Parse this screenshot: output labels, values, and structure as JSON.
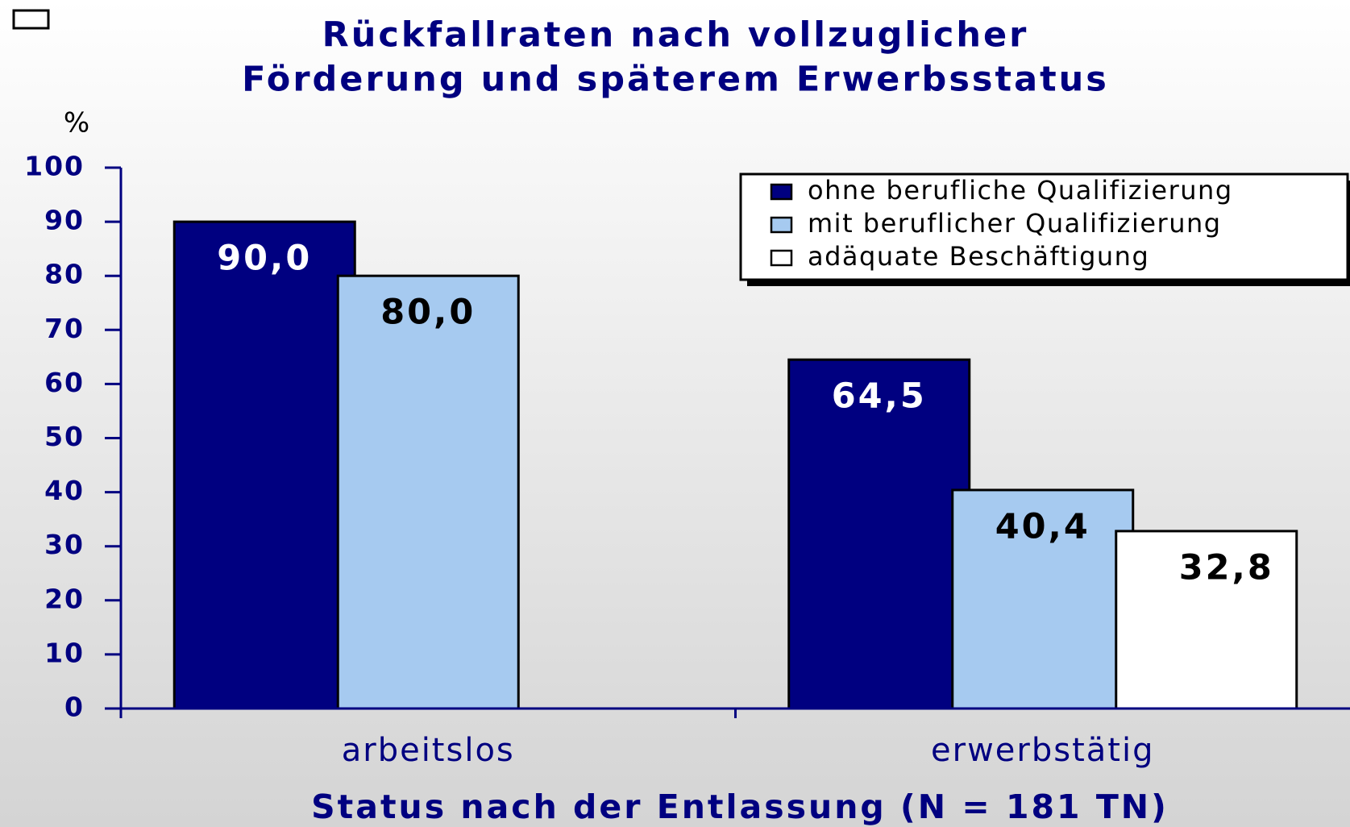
{
  "chart_data": {
    "type": "bar",
    "title": [
      "Rückfallraten nach vollzuglicher",
      "Förderung und späterem Erwerbsstatus"
    ],
    "y_unit": "%",
    "x_label": "Status nach der Entlassung (N = 181 TN)",
    "categories": [
      "arbeitslos",
      "erwerbstätig"
    ],
    "series": [
      {
        "name": "ohne berufliche Qualifizierung",
        "color": "#000080",
        "label_color": "#ffffff",
        "values": [
          90.0,
          64.5
        ],
        "value_labels": [
          "90,0",
          "64,5"
        ]
      },
      {
        "name": "mit beruflicher Qualifizierung",
        "color": "#a6caf0",
        "label_color": "#000000",
        "values": [
          80.0,
          40.4
        ],
        "value_labels": [
          "80,0",
          "40,4"
        ]
      },
      {
        "name": "adäquate Beschäftigung",
        "color": "#ffffff",
        "label_color": "#000000",
        "values": [
          null,
          32.8
        ],
        "value_labels": [
          null,
          "32,8"
        ]
      }
    ],
    "ylim": [
      0,
      100
    ],
    "yticks": [
      0,
      10,
      20,
      30,
      40,
      50,
      60,
      70,
      80,
      90,
      100
    ],
    "legend": "top-right"
  }
}
